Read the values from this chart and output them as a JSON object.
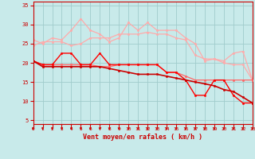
{
  "xlabel": "Vent moyen/en rafales ( km/h )",
  "xlim": [
    0,
    23
  ],
  "ylim": [
    4,
    36
  ],
  "yticks": [
    5,
    10,
    15,
    20,
    25,
    30,
    35
  ],
  "xticks": [
    0,
    1,
    2,
    3,
    4,
    5,
    6,
    7,
    8,
    9,
    10,
    11,
    12,
    13,
    14,
    15,
    16,
    17,
    18,
    19,
    20,
    21,
    22,
    23
  ],
  "bg_color": "#c8eaea",
  "grid_color": "#a0cccc",
  "series": [
    {
      "x": [
        0,
        1,
        2,
        3,
        4,
        5,
        6,
        7,
        8,
        9,
        10,
        11,
        12,
        13,
        14,
        15,
        16,
        17,
        18,
        19,
        20,
        21,
        22,
        23
      ],
      "y": [
        26.0,
        25.0,
        26.5,
        26.0,
        28.5,
        31.5,
        28.5,
        27.5,
        25.5,
        26.5,
        30.5,
        28.5,
        30.5,
        28.5,
        28.5,
        28.5,
        26.5,
        25.0,
        20.5,
        21.0,
        20.5,
        22.5,
        23.0,
        15.5
      ],
      "color": "#ffaaaa",
      "lw": 0.9,
      "marker": "o",
      "ms": 1.8,
      "zorder": 2
    },
    {
      "x": [
        0,
        1,
        2,
        3,
        4,
        5,
        6,
        7,
        8,
        9,
        10,
        11,
        12,
        13,
        14,
        15,
        16,
        17,
        18,
        19,
        20,
        21,
        22,
        23
      ],
      "y": [
        24.5,
        25.5,
        25.5,
        25.5,
        24.5,
        25.0,
        26.5,
        26.5,
        26.5,
        27.5,
        27.5,
        27.5,
        28.0,
        27.5,
        27.5,
        26.5,
        26.0,
        22.0,
        21.0,
        21.0,
        20.0,
        19.5,
        19.5,
        15.5
      ],
      "color": "#ffaaaa",
      "lw": 0.9,
      "marker": "o",
      "ms": 1.8,
      "zorder": 2
    },
    {
      "x": [
        0,
        1,
        2,
        3,
        4,
        5,
        6,
        7,
        8,
        9,
        10,
        11,
        12,
        13,
        14,
        15,
        16,
        17,
        18,
        19,
        20,
        21,
        22,
        23
      ],
      "y": [
        20.5,
        19.5,
        19.5,
        19.5,
        19.5,
        19.5,
        19.5,
        19.0,
        19.0,
        19.5,
        19.5,
        19.5,
        19.5,
        19.5,
        17.5,
        17.5,
        16.5,
        15.5,
        15.5,
        15.5,
        15.5,
        15.5,
        15.5,
        15.5
      ],
      "color": "#ff6666",
      "lw": 0.9,
      "marker": "o",
      "ms": 1.8,
      "zorder": 3
    },
    {
      "x": [
        0,
        1,
        2,
        3,
        4,
        5,
        6,
        7,
        8,
        9,
        10,
        11,
        12,
        13,
        14,
        15,
        16,
        17,
        18,
        19,
        20,
        21,
        22,
        23
      ],
      "y": [
        20.5,
        19.5,
        19.5,
        22.5,
        22.5,
        19.5,
        19.5,
        22.5,
        19.5,
        19.5,
        19.5,
        19.5,
        19.5,
        19.5,
        17.5,
        17.5,
        15.5,
        11.5,
        11.5,
        15.5,
        15.5,
        11.5,
        9.5,
        9.5
      ],
      "color": "#ff0000",
      "lw": 1.0,
      "marker": "o",
      "ms": 1.8,
      "zorder": 4
    },
    {
      "x": [
        0,
        1,
        2,
        3,
        4,
        5,
        6,
        7,
        8,
        9,
        10,
        11,
        12,
        13,
        14,
        15,
        16,
        17,
        18,
        19,
        20,
        21,
        22,
        23
      ],
      "y": [
        20.5,
        19.0,
        19.0,
        19.0,
        19.0,
        19.0,
        19.0,
        19.0,
        18.5,
        18.0,
        17.5,
        17.0,
        17.0,
        17.0,
        16.5,
        16.0,
        15.5,
        15.0,
        14.5,
        14.0,
        13.0,
        12.5,
        11.0,
        9.5
      ],
      "color": "#cc0000",
      "lw": 1.2,
      "marker": "o",
      "ms": 1.8,
      "zorder": 5
    }
  ]
}
